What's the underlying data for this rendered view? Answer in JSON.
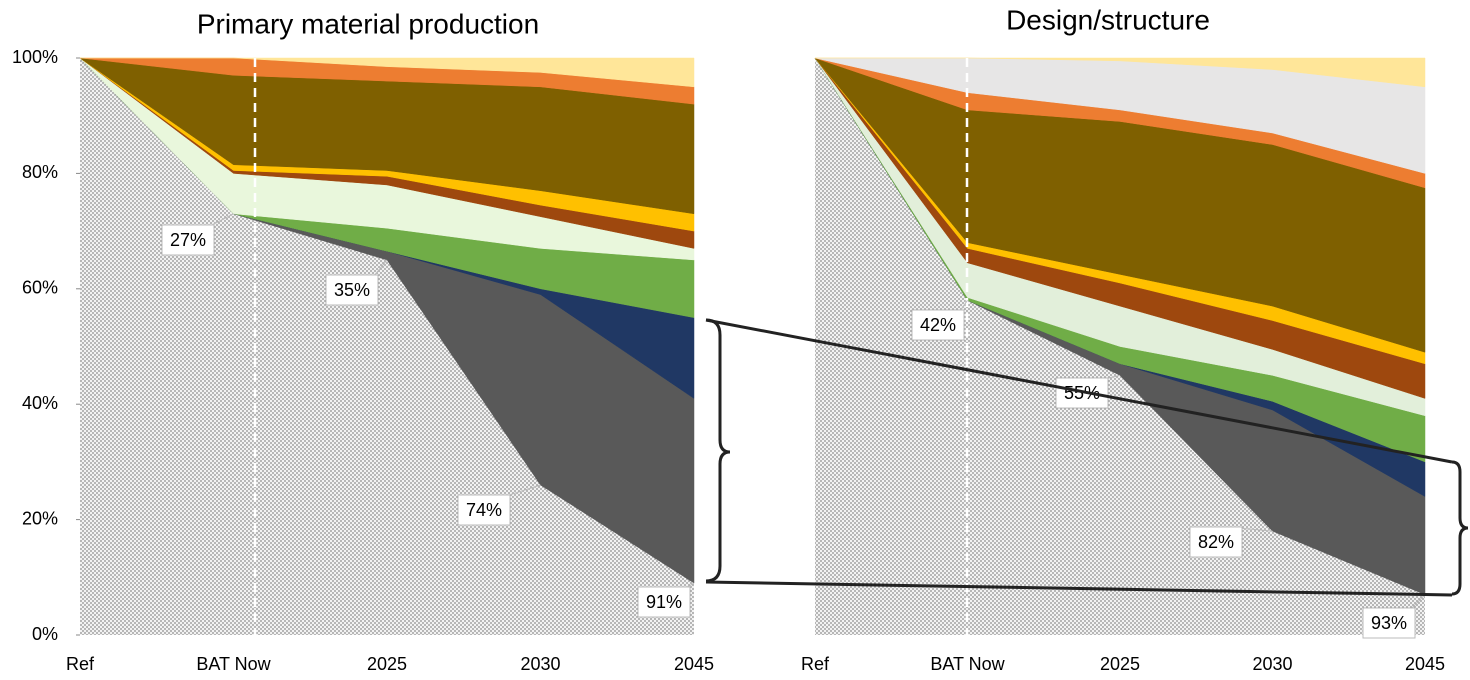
{
  "chart_data": [
    {
      "type": "area",
      "stacked": true,
      "title": "Primary material production",
      "categories": [
        "Ref",
        "BAT Now",
        "2025",
        "2030",
        "2045"
      ],
      "ylim": [
        0,
        100
      ],
      "yticks": [
        {
          "value": 0,
          "label": "0%"
        },
        {
          "value": 20,
          "label": "20%"
        },
        {
          "value": 40,
          "label": "40%"
        },
        {
          "value": 60,
          "label": "60%"
        },
        {
          "value": 80,
          "label": "80%"
        },
        {
          "value": 100,
          "label": "100%"
        }
      ],
      "series": [
        {
          "color": "#a6a6a6",
          "hatch": true,
          "values": [
            100,
            73,
            65,
            26,
            9
          ]
        },
        {
          "color": "#595959",
          "values": [
            0,
            0,
            1.5,
            33,
            32
          ]
        },
        {
          "color": "#203864",
          "values": [
            0,
            0,
            0,
            1,
            14
          ]
        },
        {
          "color": "#70ad47",
          "values": [
            0,
            0,
            4,
            7,
            10
          ]
        },
        {
          "color": "#e9f7dc",
          "values": [
            0,
            7,
            7.5,
            5.5,
            2
          ]
        },
        {
          "color": "#9e480e",
          "values": [
            0,
            0.5,
            1.5,
            2,
            3
          ]
        },
        {
          "color": "#ffc000",
          "values": [
            0,
            1,
            1,
            2.5,
            3
          ]
        },
        {
          "color": "#7f6000",
          "values": [
            0,
            15.5,
            15.5,
            18,
            19
          ]
        },
        {
          "color": "#ed7d31",
          "values": [
            0,
            3,
            2.5,
            2.5,
            3
          ]
        },
        {
          "color": "#ffe699",
          "values": [
            0,
            0,
            1.5,
            2.5,
            5
          ]
        }
      ],
      "annotations": [
        "27%",
        "35%",
        "74%",
        "91%"
      ]
    },
    {
      "type": "area",
      "stacked": true,
      "title": "Design/structure",
      "categories": [
        "Ref",
        "BAT Now",
        "2025",
        "2030",
        "2045"
      ],
      "ylim": [
        0,
        100
      ],
      "series": [
        {
          "color": "#a6a6a6",
          "hatch": true,
          "values": [
            100,
            58,
            45,
            18,
            7
          ]
        },
        {
          "color": "#595959",
          "values": [
            0,
            0,
            2,
            21,
            17
          ]
        },
        {
          "color": "#203864",
          "values": [
            0,
            0,
            0,
            1.5,
            6
          ]
        },
        {
          "color": "#70ad47",
          "values": [
            0,
            0.5,
            3,
            4.5,
            8
          ]
        },
        {
          "color": "#e2efda",
          "values": [
            0,
            6,
            7,
            4.5,
            3
          ]
        },
        {
          "color": "#9e480e",
          "values": [
            0,
            2.5,
            4,
            5,
            6
          ]
        },
        {
          "color": "#ffc000",
          "values": [
            0,
            1,
            1.5,
            2.5,
            2
          ]
        },
        {
          "color": "#7f6000",
          "values": [
            0,
            23,
            26.5,
            28,
            28.5
          ]
        },
        {
          "color": "#ed7d31",
          "values": [
            0,
            3,
            2,
            2,
            2.5
          ]
        },
        {
          "color": "#e7e6e6",
          "values": [
            0,
            6,
            8.5,
            11,
            15
          ]
        },
        {
          "color": "#ffe699",
          "values": [
            0,
            0,
            0.5,
            2,
            5
          ]
        }
      ],
      "annotations": [
        "42%",
        "55%",
        "82%",
        "93%"
      ]
    }
  ]
}
